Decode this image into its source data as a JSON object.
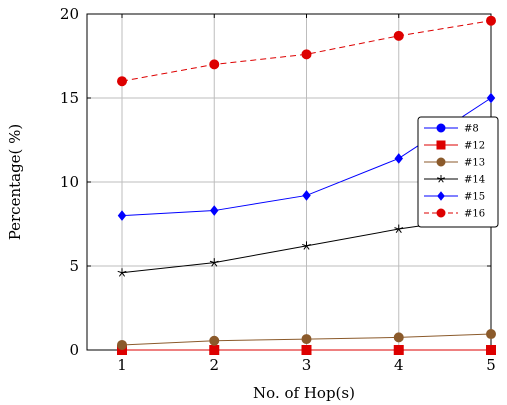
{
  "chart_data": {
    "type": "line",
    "xlabel": "No. of Hop(s)",
    "ylabel": "Percentage( %)",
    "x": [
      1,
      2,
      3,
      4,
      5
    ],
    "xlim": [
      1,
      5
    ],
    "ylim": [
      0,
      20
    ],
    "xticks": [
      "1",
      "2",
      "3",
      "4",
      "5"
    ],
    "yticks": [
      "0",
      "5",
      "10",
      "15",
      "20"
    ],
    "grid": true,
    "legend_position": "right",
    "series": [
      {
        "name": "#8",
        "values": [
          0,
          0,
          0,
          0,
          0
        ],
        "color": "#0000ff",
        "marker": "circle",
        "dash": "solid"
      },
      {
        "name": "#12",
        "values": [
          0,
          0,
          0,
          0,
          0
        ],
        "color": "#dd0000",
        "marker": "square",
        "dash": "solid"
      },
      {
        "name": "#13",
        "values": [
          0.3,
          0.55,
          0.65,
          0.75,
          0.95
        ],
        "color": "#8b5a2b",
        "marker": "circle",
        "dash": "solid"
      },
      {
        "name": "#14",
        "values": [
          4.6,
          5.2,
          6.2,
          7.2,
          8.0
        ],
        "color": "#000000",
        "marker": "star",
        "dash": "solid"
      },
      {
        "name": "#15",
        "values": [
          8.0,
          8.3,
          9.2,
          11.4,
          15.0
        ],
        "color": "#0000ff",
        "marker": "diamond",
        "dash": "solid"
      },
      {
        "name": "#16",
        "values": [
          16.0,
          17.0,
          17.6,
          18.7,
          19.6
        ],
        "color": "#dd0000",
        "marker": "circle",
        "dash": "dashed"
      }
    ]
  }
}
